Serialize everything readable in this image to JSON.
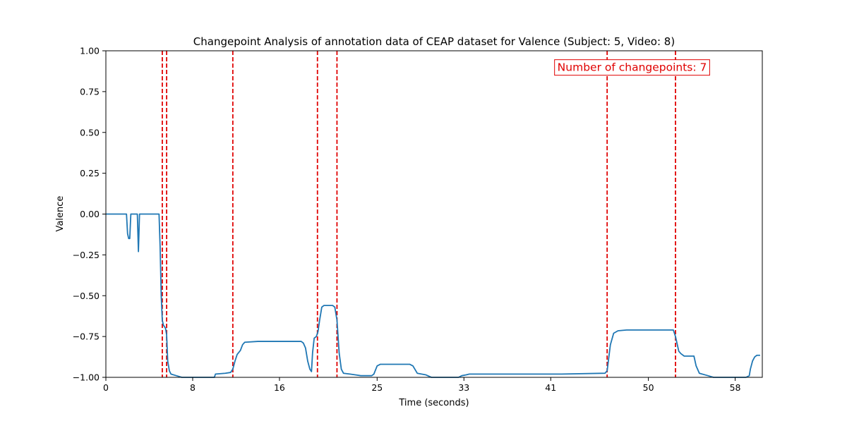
{
  "chart_data": {
    "type": "line",
    "title": "Changepoint Analysis of annotation data of CEAP dataset for Valence (Subject: 5, Video: 8)",
    "xlabel": "Time (seconds)",
    "ylabel": "Valence",
    "xlim": [
      0,
      60.5
    ],
    "ylim": [
      -1.0,
      1.0
    ],
    "x_ticks": [
      0,
      8,
      16,
      25,
      33,
      41,
      50,
      58
    ],
    "y_ticks": [
      1.0,
      0.75,
      0.5,
      0.25,
      0.0,
      -0.25,
      -0.5,
      -0.75,
      -1.0
    ],
    "y_tick_labels": [
      "1.00",
      "0.75",
      "0.50",
      "0.25",
      "0.00",
      "−0.25",
      "−0.50",
      "−0.75",
      "−1.00"
    ],
    "grid": false,
    "series": [
      {
        "color": "#1f77b4",
        "points": [
          [
            0,
            0.0
          ],
          [
            1.9,
            0.0
          ],
          [
            2.0,
            -0.12
          ],
          [
            2.1,
            -0.15
          ],
          [
            2.2,
            -0.15
          ],
          [
            2.3,
            0.0
          ],
          [
            2.9,
            0.0
          ],
          [
            3.0,
            -0.23
          ],
          [
            3.1,
            0.0
          ],
          [
            4.0,
            0.0
          ],
          [
            4.9,
            0.0
          ],
          [
            5.0,
            -0.2
          ],
          [
            5.1,
            -0.5
          ],
          [
            5.2,
            -0.65
          ],
          [
            5.3,
            -0.68
          ],
          [
            5.5,
            -0.7
          ],
          [
            5.6,
            -0.74
          ],
          [
            5.7,
            -0.9
          ],
          [
            5.85,
            -0.96
          ],
          [
            6.0,
            -0.98
          ],
          [
            6.5,
            -0.99
          ],
          [
            7.0,
            -1.0
          ],
          [
            10.0,
            -1.0
          ],
          [
            10.1,
            -0.98
          ],
          [
            11.0,
            -0.975
          ],
          [
            11.5,
            -0.97
          ],
          [
            11.7,
            -0.95
          ],
          [
            11.9,
            -0.9
          ],
          [
            12.1,
            -0.86
          ],
          [
            12.4,
            -0.835
          ],
          [
            12.6,
            -0.8
          ],
          [
            12.8,
            -0.785
          ],
          [
            14.0,
            -0.78
          ],
          [
            16.0,
            -0.78
          ],
          [
            18.0,
            -0.78
          ],
          [
            18.2,
            -0.79
          ],
          [
            18.4,
            -0.82
          ],
          [
            18.6,
            -0.9
          ],
          [
            18.8,
            -0.95
          ],
          [
            18.95,
            -0.965
          ],
          [
            19.05,
            -0.85
          ],
          [
            19.2,
            -0.76
          ],
          [
            19.4,
            -0.75
          ],
          [
            19.55,
            -0.72
          ],
          [
            19.7,
            -0.65
          ],
          [
            19.9,
            -0.57
          ],
          [
            20.1,
            -0.56
          ],
          [
            20.9,
            -0.56
          ],
          [
            21.1,
            -0.57
          ],
          [
            21.3,
            -0.65
          ],
          [
            21.5,
            -0.85
          ],
          [
            21.7,
            -0.95
          ],
          [
            21.9,
            -0.975
          ],
          [
            22.5,
            -0.98
          ],
          [
            23.0,
            -0.985
          ],
          [
            23.5,
            -0.99
          ],
          [
            24.5,
            -0.99
          ],
          [
            24.7,
            -0.98
          ],
          [
            25.0,
            -0.93
          ],
          [
            25.3,
            -0.92
          ],
          [
            26.0,
            -0.92
          ],
          [
            27.0,
            -0.92
          ],
          [
            28.0,
            -0.92
          ],
          [
            28.3,
            -0.93
          ],
          [
            28.7,
            -0.975
          ],
          [
            29.5,
            -0.985
          ],
          [
            30.0,
            -1.0
          ],
          [
            32.5,
            -1.0
          ],
          [
            32.8,
            -0.99
          ],
          [
            33.2,
            -0.985
          ],
          [
            33.5,
            -0.98
          ],
          [
            38.0,
            -0.98
          ],
          [
            42.0,
            -0.98
          ],
          [
            46.0,
            -0.975
          ],
          [
            46.2,
            -0.96
          ],
          [
            46.5,
            -0.8
          ],
          [
            46.8,
            -0.73
          ],
          [
            47.2,
            -0.715
          ],
          [
            48.0,
            -0.71
          ],
          [
            50.0,
            -0.71
          ],
          [
            52.3,
            -0.71
          ],
          [
            52.5,
            -0.75
          ],
          [
            52.8,
            -0.84
          ],
          [
            53.0,
            -0.855
          ],
          [
            53.3,
            -0.87
          ],
          [
            54.2,
            -0.87
          ],
          [
            54.4,
            -0.93
          ],
          [
            54.7,
            -0.975
          ],
          [
            55.5,
            -0.99
          ],
          [
            56.0,
            -1.0
          ],
          [
            57.0,
            -1.0
          ],
          [
            58.0,
            -1.0
          ],
          [
            59.0,
            -1.0
          ],
          [
            59.3,
            -0.99
          ],
          [
            59.4,
            -0.95
          ],
          [
            59.6,
            -0.9
          ],
          [
            59.8,
            -0.875
          ],
          [
            60.0,
            -0.865
          ],
          [
            60.3,
            -0.865
          ]
        ]
      }
    ],
    "changepoints": [
      5.2,
      5.6,
      11.7,
      19.5,
      21.3,
      46.2,
      52.5
    ],
    "changepoint_color": "#e00000",
    "annotation": {
      "text": "Number of changepoints: 7",
      "x": 48.5,
      "y": 0.9,
      "color": "#e00000"
    }
  }
}
